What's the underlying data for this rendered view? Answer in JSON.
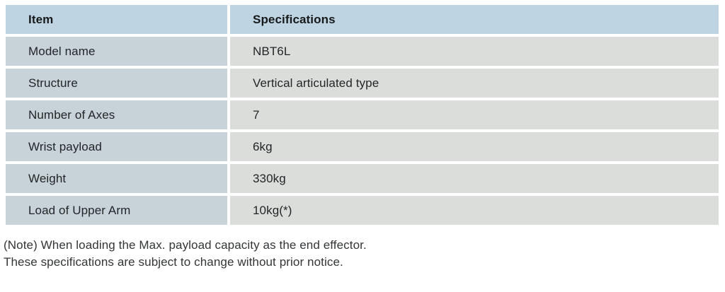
{
  "table": {
    "headers": [
      "Item",
      "Specifications"
    ],
    "rows": [
      {
        "item": "Model name",
        "spec": "NBT6L"
      },
      {
        "item": "Structure",
        "spec": "Vertical articulated type"
      },
      {
        "item": "Number of Axes",
        "spec": "7"
      },
      {
        "item": "Wrist payload",
        "spec": "6kg"
      },
      {
        "item": "Weight",
        "spec": "330kg"
      },
      {
        "item": "Load of Upper Arm",
        "spec": "10kg(*)"
      }
    ]
  },
  "notes": [
    "(Note) When loading the Max. payload capacity as the end effector.",
    "These specifications are subject to change without prior notice."
  ],
  "colors": {
    "header_bg": "#bed4e2",
    "item_column_bg": "#c8d2d9",
    "spec_column_bg": "#dbddda",
    "text": "#222628",
    "note_text": "#333537"
  }
}
